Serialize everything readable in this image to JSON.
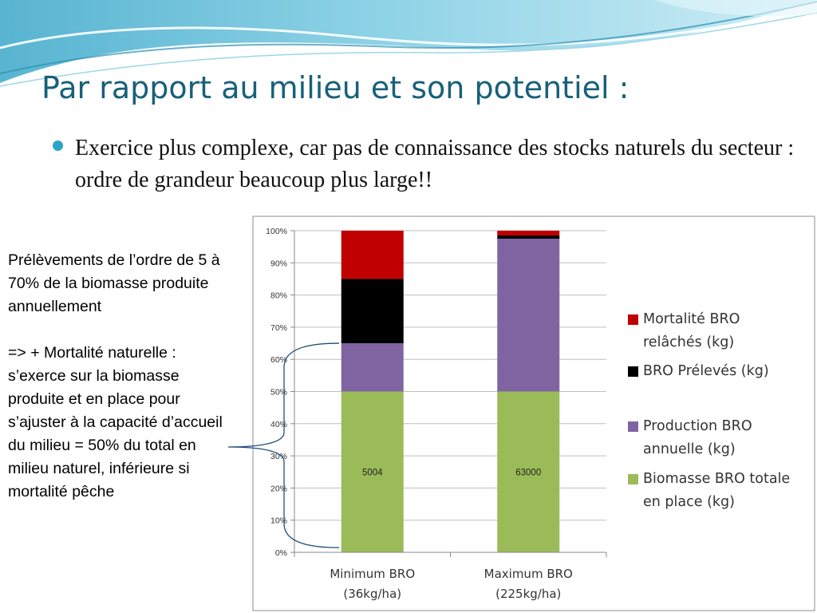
{
  "slide": {
    "title": "Par rapport au milieu et son potentiel :",
    "bullet": "Exercice plus complexe, car pas de connaissance des stocks naturels du secteur : ordre de grandeur beaucoup plus large!!"
  },
  "side_note": {
    "para1": "Prélèvements de l’ordre de 5 à 70% de la biomasse produite annuellement",
    "para2": "=> + Mortalité naturelle : s’exerce sur la biomasse produite et en place pour s’ajuster à la capacité d’accueil du milieu = 50% du total en milieu naturel, inférieure si mortalité pêche"
  },
  "chart_data": {
    "type": "bar",
    "stacked": "100%",
    "title": "",
    "xlabel": "",
    "ylabel": "",
    "ylim": [
      0,
      100
    ],
    "yticks": [
      "0%",
      "10%",
      "20%",
      "30%",
      "40%",
      "50%",
      "60%",
      "70%",
      "80%",
      "90%",
      "100%"
    ],
    "categories": [
      {
        "line1": "Minimum BRO",
        "line2": "(36kg/ha)"
      },
      {
        "line1": "Maximum BRO",
        "line2": "(225kg/ha)"
      }
    ],
    "series": [
      {
        "name": "Biomasse BRO totale en place (kg)",
        "legend_lines": [
          "Biomasse BRO totale",
          "en place (kg)"
        ],
        "color": "#9bbb59",
        "values": [
          50,
          50
        ],
        "data_labels": [
          "5004",
          "63000"
        ]
      },
      {
        "name": "Production BRO annuelle (kg)",
        "legend_lines": [
          "Production BRO",
          "annuelle (kg)"
        ],
        "color": "#8064a2",
        "values": [
          15,
          47.5
        ],
        "data_labels": [
          "",
          ""
        ]
      },
      {
        "name": "BRO Prélevés (kg)",
        "legend_lines": [
          "BRO Prélevés (kg)"
        ],
        "color": "#000000",
        "values": [
          20,
          1
        ],
        "data_labels": [
          "",
          ""
        ]
      },
      {
        "name": "Mortalité BRO relâchés (kg)",
        "legend_lines": [
          "Mortalité BRO",
          "relâchés (kg)"
        ],
        "color": "#c00000",
        "values": [
          15,
          1.5
        ],
        "data_labels": [
          "",
          ""
        ]
      }
    ],
    "legend_order": [
      3,
      2,
      1,
      0
    ],
    "legend_position": "right",
    "grid": true,
    "bracket_color": "#1f4e79"
  }
}
